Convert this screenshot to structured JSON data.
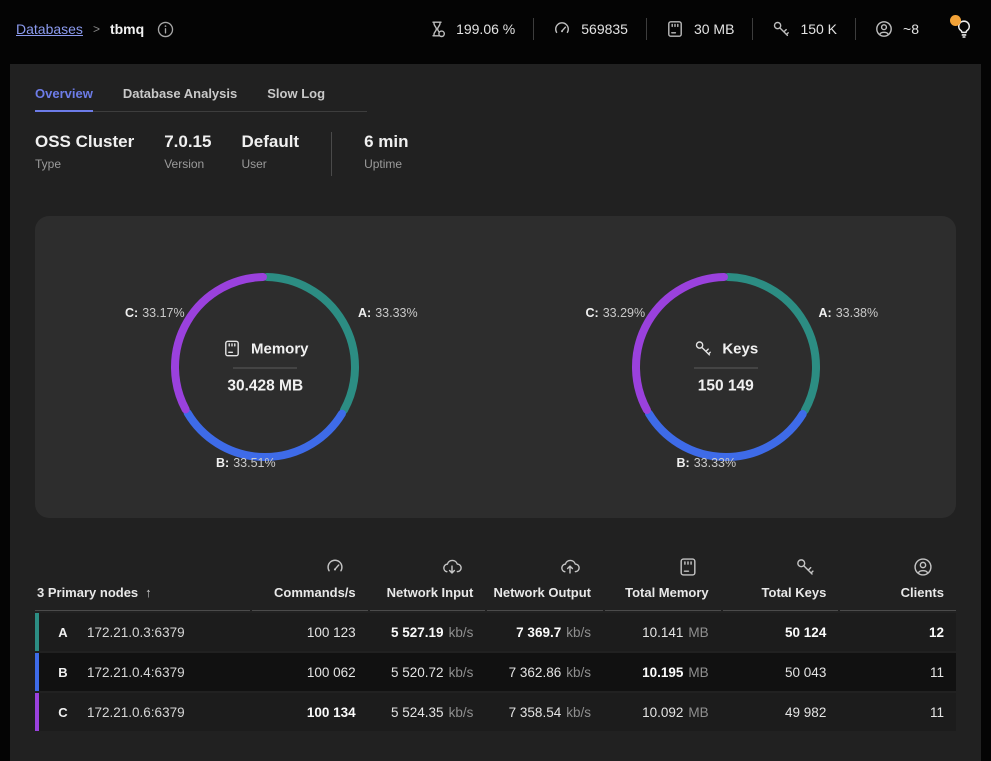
{
  "topbar": {
    "breadcrumb": {
      "link": "Databases",
      "separator": ">",
      "current": "tbmq"
    },
    "stats": [
      {
        "icon": "cpu-usage-icon",
        "value": "199.06 %"
      },
      {
        "icon": "commands-rate-icon",
        "value": "569835"
      },
      {
        "icon": "memory-icon",
        "value": "30 MB"
      },
      {
        "icon": "keys-icon",
        "value": "150 K"
      },
      {
        "icon": "clients-icon",
        "value": "~8"
      }
    ]
  },
  "tabs": [
    {
      "label": "Overview"
    },
    {
      "label": "Database Analysis"
    },
    {
      "label": "Slow Log"
    }
  ],
  "summary": [
    {
      "value": "OSS Cluster",
      "label": "Type"
    },
    {
      "value": "7.0.15",
      "label": "Version"
    },
    {
      "value": "Default",
      "label": "User"
    },
    {
      "value": "6 min",
      "label": "Uptime"
    }
  ],
  "chart_data": [
    {
      "type": "donut",
      "title": "Memory",
      "center_value": "30.428 MB",
      "segments": [
        {
          "prefix": "A:",
          "pct": "33.33%",
          "value": 33.33,
          "color": "#2c8d83"
        },
        {
          "prefix": "B:",
          "pct": "33.51%",
          "value": 33.51,
          "color": "#3e6be8"
        },
        {
          "prefix": "C:",
          "pct": "33.17%",
          "value": 33.17,
          "color": "#9a41dd"
        }
      ]
    },
    {
      "type": "donut",
      "title": "Keys",
      "center_value": "150 149",
      "segments": [
        {
          "prefix": "A:",
          "pct": "33.38%",
          "value": 33.38,
          "color": "#2c8d83"
        },
        {
          "prefix": "B:",
          "pct": "33.33%",
          "value": 33.33,
          "color": "#3e6be8"
        },
        {
          "prefix": "C:",
          "pct": "33.29%",
          "value": 33.29,
          "color": "#9a41dd"
        }
      ]
    }
  ],
  "table": {
    "title": "3 Primary nodes",
    "sort_indicator": "↑",
    "columns": [
      {
        "label": "Commands/s",
        "icon": "gauge-icon"
      },
      {
        "label": "Network Input",
        "icon": "cloud-download-icon"
      },
      {
        "label": "Network Output",
        "icon": "cloud-upload-icon"
      },
      {
        "label": "Total Memory",
        "icon": "memory-icon"
      },
      {
        "label": "Total Keys",
        "icon": "key-icon"
      },
      {
        "label": "Clients",
        "icon": "clients-icon"
      }
    ],
    "rows": [
      {
        "letter": "A",
        "address": "172.21.0.3:6379",
        "accent": "#2c8d83",
        "cells": [
          {
            "value": "100 123",
            "unit": "",
            "bold": false
          },
          {
            "value": "5 527.19",
            "unit": "kb/s",
            "bold": true
          },
          {
            "value": "7 369.7",
            "unit": "kb/s",
            "bold": true
          },
          {
            "value": "10.141",
            "unit": "MB",
            "bold": false
          },
          {
            "value": "50 124",
            "unit": "",
            "bold": true
          },
          {
            "value": "12",
            "unit": "",
            "bold": true
          }
        ]
      },
      {
        "letter": "B",
        "address": "172.21.0.4:6379",
        "accent": "#3e6be8",
        "cells": [
          {
            "value": "100 062",
            "unit": "",
            "bold": false
          },
          {
            "value": "5 520.72",
            "unit": "kb/s",
            "bold": false
          },
          {
            "value": "7 362.86",
            "unit": "kb/s",
            "bold": false
          },
          {
            "value": "10.195",
            "unit": "MB",
            "bold": true
          },
          {
            "value": "50 043",
            "unit": "",
            "bold": false
          },
          {
            "value": "11",
            "unit": "",
            "bold": false
          }
        ]
      },
      {
        "letter": "C",
        "address": "172.21.0.6:6379",
        "accent": "#9a41dd",
        "cells": [
          {
            "value": "100 134",
            "unit": "",
            "bold": true
          },
          {
            "value": "5 524.35",
            "unit": "kb/s",
            "bold": false
          },
          {
            "value": "7 358.54",
            "unit": "kb/s",
            "bold": false
          },
          {
            "value": "10.092",
            "unit": "MB",
            "bold": false
          },
          {
            "value": "49 982",
            "unit": "",
            "bold": false
          },
          {
            "value": "11",
            "unit": "",
            "bold": false
          }
        ]
      }
    ]
  },
  "colors": {
    "accent_link": "#8c9bef",
    "tab_active": "#6d7ce8",
    "node_a": "#2c8d83",
    "node_b": "#3e6be8",
    "node_c": "#9a41dd",
    "notification_dot": "#f2a237"
  }
}
